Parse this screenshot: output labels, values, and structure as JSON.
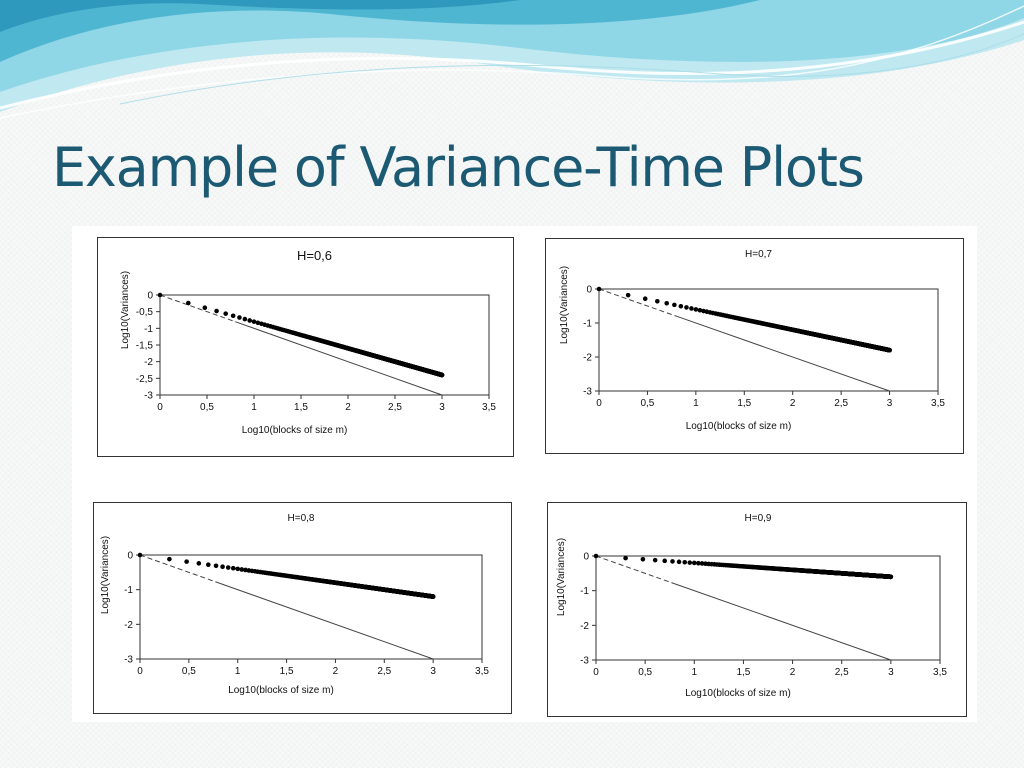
{
  "slide": {
    "title": "Example of Variance-Time Plots"
  },
  "colors": {
    "title": "#1c5a73",
    "wave_light": "#c8ecf3",
    "wave_mid": "#7fcfe0",
    "wave_dark": "#3aa6c4"
  },
  "chart_data": [
    {
      "type": "scatter",
      "title": "H=0,6",
      "xlabel": "Log10(blocks of size m)",
      "ylabel": "Log10(Variances)",
      "xlim": [
        0,
        3.5
      ],
      "ylim": [
        -3,
        0
      ],
      "xticks": [
        "0",
        "0,5",
        "1",
        "1,5",
        "2",
        "2,5",
        "3",
        "3,5"
      ],
      "yticks": [
        "0",
        "-0,5",
        "-1",
        "-1,5",
        "-2",
        "-2,5",
        "-3"
      ],
      "grid": false,
      "legend": "none",
      "series": [
        {
          "marker": "dots",
          "x": [
            0,
            3
          ],
          "y": [
            0,
            -2.4
          ]
        },
        {
          "line": "reference slope -1",
          "x": [
            0,
            3
          ],
          "y": [
            0,
            -3
          ]
        }
      ]
    },
    {
      "type": "scatter",
      "title": "H=0,7",
      "xlabel": "Log10(blocks of size m)",
      "ylabel": "Log10(Variances)",
      "xlim": [
        0,
        3.5
      ],
      "ylim": [
        -3,
        0
      ],
      "xticks": [
        "0",
        "0,5",
        "1",
        "1,5",
        "2",
        "2,5",
        "3",
        "3,5"
      ],
      "yticks": [
        "0",
        "-1",
        "-2",
        "-3"
      ],
      "grid": false,
      "legend": "none",
      "series": [
        {
          "marker": "dots",
          "x": [
            0,
            3
          ],
          "y": [
            0,
            -1.8
          ]
        },
        {
          "line": "reference slope -1",
          "x": [
            0,
            3
          ],
          "y": [
            0,
            -3
          ]
        }
      ]
    },
    {
      "type": "scatter",
      "title": "H=0,8",
      "xlabel": "Log10(blocks of size m)",
      "ylabel": "Log10(Variances)",
      "xlim": [
        0,
        3.5
      ],
      "ylim": [
        -3,
        0
      ],
      "xticks": [
        "0",
        "0,5",
        "1",
        "1,5",
        "2",
        "2,5",
        "3",
        "3,5"
      ],
      "yticks": [
        "0",
        "-1",
        "-2",
        "-3"
      ],
      "grid": false,
      "legend": "none",
      "series": [
        {
          "marker": "dots",
          "x": [
            0,
            3
          ],
          "y": [
            0,
            -1.2
          ]
        },
        {
          "line": "reference slope -1",
          "x": [
            0,
            3
          ],
          "y": [
            0,
            -3
          ]
        }
      ]
    },
    {
      "type": "scatter",
      "title": "H=0,9",
      "xlabel": "Log10(blocks of size m)",
      "ylabel": "Log10(Variances)",
      "xlim": [
        0,
        3.5
      ],
      "ylim": [
        -3,
        0
      ],
      "xticks": [
        "0",
        "0,5",
        "1",
        "1,5",
        "2",
        "2,5",
        "3",
        "3,5"
      ],
      "yticks": [
        "0",
        "-1",
        "-2",
        "-3"
      ],
      "grid": false,
      "legend": "none",
      "series": [
        {
          "marker": "dots",
          "x": [
            0,
            3
          ],
          "y": [
            0,
            -0.6
          ]
        },
        {
          "line": "reference slope -1",
          "x": [
            0,
            3
          ],
          "y": [
            0,
            -3
          ]
        }
      ]
    }
  ]
}
